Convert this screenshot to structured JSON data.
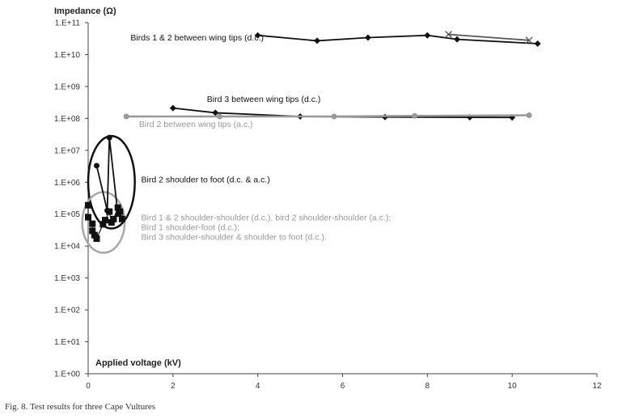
{
  "caption": "Fig. 8. Test results for three Cape Vultures",
  "chart_data": {
    "type": "scatter",
    "xlabel": "Applied voltage (kV)",
    "ylabel": "Impedance (Ω)",
    "xlim": [
      0,
      12
    ],
    "ylim_log10": [
      0,
      11
    ],
    "log_y": true,
    "grid": false,
    "x_ticks": [
      "0",
      "2",
      "4",
      "6",
      "8",
      "10",
      "12"
    ],
    "y_ticks": [
      "1.E+00",
      "1.E+01",
      "1.E+02",
      "1.E+03",
      "1.E+04",
      "1.E+05",
      "1.E+06",
      "1.E+07",
      "1.E+08",
      "1.E+09",
      "1.E+10",
      "1.E+11"
    ],
    "series": [
      {
        "name": "Birds 1 & 2 between wing tips (d.c.)",
        "color": "#111111",
        "marker": "diamond",
        "points": [
          [
            4.0,
            40000000000.0
          ],
          [
            5.4,
            27000000000.0
          ],
          [
            6.6,
            34000000000.0
          ],
          [
            8.0,
            40000000000.0
          ],
          [
            8.7,
            30000000000.0
          ],
          [
            10.6,
            22000000000.0
          ]
        ]
      },
      {
        "name": "",
        "color": "#555555",
        "marker": "cross",
        "points": [
          [
            8.5,
            43000000000.0
          ],
          [
            10.4,
            28000000000.0
          ]
        ]
      },
      {
        "name": "Bird 3 between wing tips (d.c.)",
        "color": "#111111",
        "marker": "diamond",
        "points": [
          [
            2.0,
            210000000.0
          ],
          [
            3.0,
            150000000.0
          ],
          [
            5.0,
            115000000.0
          ],
          [
            7.0,
            110000000.0
          ],
          [
            9.0,
            108000000.0
          ],
          [
            10.0,
            107000000.0
          ]
        ]
      },
      {
        "name": "Bird 2 between wing tips (a.c.)",
        "color": "#999999",
        "marker": "circle",
        "points": [
          [
            0.9,
            115000000.0
          ],
          [
            3.1,
            115000000.0
          ],
          [
            5.8,
            115000000.0
          ],
          [
            7.7,
            120000000.0
          ],
          [
            10.4,
            125000000.0
          ]
        ]
      },
      {
        "name": "Bird 2 shoulder to foot (d.c. & a.c.)",
        "color": "#111111",
        "marker": "circle",
        "points": [
          [
            0.2,
            3300000.0
          ],
          [
            0.45,
            130000.0
          ],
          [
            0.5,
            25000000.0
          ],
          [
            0.7,
            100000.0
          ],
          [
            0.8,
            75000.0
          ]
        ]
      },
      {
        "name": "Bird 1 & 2 shoulder-shoulder (d.c.), bird 2 shoulder-shoulder (a.c.); Bird 1 shoulder-foot (d.c.); Bird 3 shoulder-shoulder & shoulder to foot (d.c.).",
        "color": "#111111",
        "marker": "square",
        "points": [
          [
            0.0,
            190000.0
          ],
          [
            0.0,
            80000.0
          ],
          [
            0.1,
            50000.0
          ],
          [
            0.1,
            30000.0
          ],
          [
            0.15,
            22000.0
          ],
          [
            0.2,
            17000.0
          ],
          [
            0.35,
            48000.0
          ],
          [
            0.4,
            65000.0
          ],
          [
            0.5,
            120000.0
          ],
          [
            0.55,
            55000.0
          ],
          [
            0.6,
            70000.0
          ],
          [
            0.7,
            160000.0
          ],
          [
            0.75,
            120000.0
          ],
          [
            0.8,
            70000.0
          ]
        ]
      }
    ],
    "annotations": [
      {
        "text": "Birds 1 & 2 between wing tips (d.c.)",
        "color": "#111111",
        "x": 1.0,
        "y": 28000000000.0
      },
      {
        "text": "Bird 3 between wing tips (d.c.)",
        "color": "#111111",
        "x": 2.8,
        "y": 330000000.0
      },
      {
        "text": "Bird 2 between wing tips (a.c.)",
        "color": "#999999",
        "x": 1.2,
        "y": 53000000.0
      },
      {
        "text": "Bird 2 shoulder to foot (d.c. & a.c.)",
        "color": "#111111",
        "x": 1.25,
        "y": 1000000.0
      },
      {
        "text": "Bird 1 & 2 shoulder-shoulder (d.c.), bird 2 shoulder-shoulder (a.c.);",
        "color": "#999999",
        "x": 1.25,
        "y": 63000.0
      },
      {
        "text": "Bird 1 shoulder-foot (d.c.);",
        "color": "#999999",
        "x": 1.25,
        "y": 32000.0
      },
      {
        "text": "Bird 3 shoulder-shoulder & shoulder to foot (d.c.).",
        "color": "#999999",
        "x": 1.25,
        "y": 15500.0
      }
    ],
    "ellipses": [
      {
        "color": "#111111",
        "cx": 0.55,
        "cy": 1000000.0,
        "rx": 0.55,
        "ry_decades": 1.45
      },
      {
        "color": "#a8a8a8",
        "cx": 0.36,
        "cy": 55000.0,
        "rx": 0.5,
        "ry_decades": 0.95
      }
    ]
  }
}
